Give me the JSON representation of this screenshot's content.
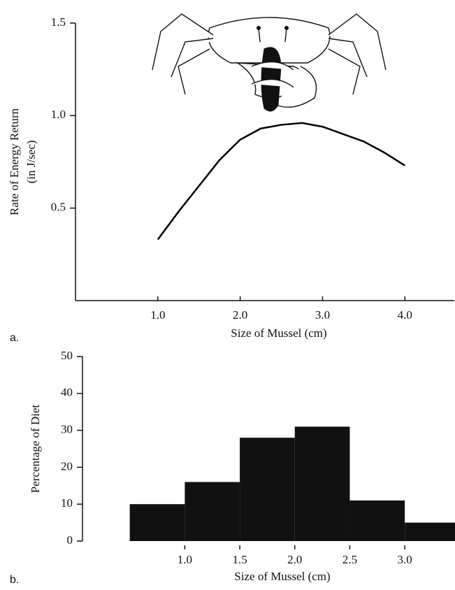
{
  "chart_data": [
    {
      "type": "line",
      "panel_label": "a.",
      "x_label": "Size of Mussel (cm)",
      "y_label": [
        "Rate of Energy Return",
        "(in J/sec)"
      ],
      "x": [
        1.0,
        1.25,
        1.5,
        1.75,
        2.0,
        2.25,
        2.5,
        2.75,
        3.0,
        3.25,
        3.5,
        3.75,
        4.0
      ],
      "values": [
        0.33,
        0.48,
        0.62,
        0.76,
        0.87,
        0.93,
        0.95,
        0.96,
        0.94,
        0.9,
        0.86,
        0.8,
        0.73
      ],
      "color": "#000000",
      "xlim": [
        0,
        4.6
      ],
      "xticks": [
        {
          "value": 1,
          "label": "1.0"
        },
        {
          "value": 2,
          "label": "2.0"
        },
        {
          "value": 3,
          "label": "3.0"
        },
        {
          "value": 4,
          "label": "4.0"
        }
      ],
      "ylim": [
        0,
        1.5
      ],
      "yticks": [
        0.5,
        {
          "value": 1,
          "label": "1.0"
        },
        1.5
      ]
    },
    {
      "type": "histogram",
      "panel_label": "b.",
      "x_label": "Size of Mussel (cm)",
      "y_label": [
        "Percentage of Diet"
      ],
      "bins": [
        0.5,
        1.0,
        1.5,
        2.0,
        2.5,
        3.0,
        3.5
      ],
      "values": [
        10,
        16,
        28,
        31,
        11,
        5
      ],
      "color": "#111111",
      "xlim": [
        0.07,
        3.45
      ],
      "xticks": [
        {
          "value": 1,
          "label": "1.0"
        },
        1.5,
        {
          "value": 2,
          "label": "2.0"
        },
        2.5,
        {
          "value": 3,
          "label": "3.0"
        }
      ],
      "ylim": [
        0,
        50
      ],
      "yticks": [
        0,
        10,
        20,
        30,
        40,
        50
      ]
    }
  ]
}
